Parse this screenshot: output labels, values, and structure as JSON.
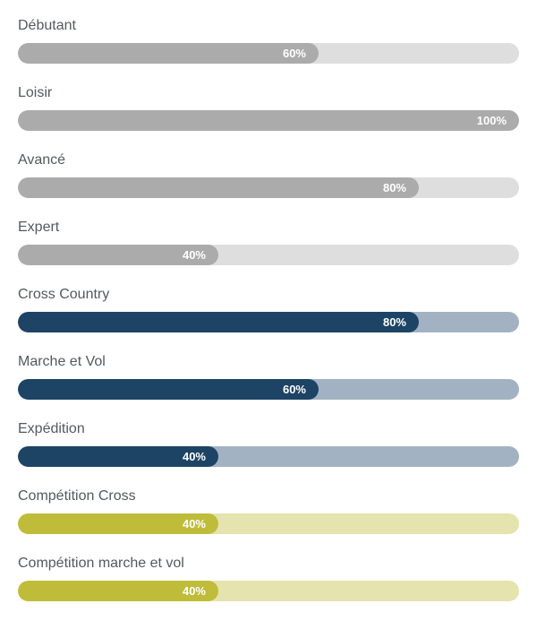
{
  "colors": {
    "gray": {
      "fill": "#ababab",
      "track": "#dedede"
    },
    "blue": {
      "fill": "#1d4465",
      "track": "#a2b2c3"
    },
    "olive": {
      "fill": "#bfbc3a",
      "track": "#e5e3ae"
    }
  },
  "bars": [
    {
      "label": "Débutant",
      "value": 60,
      "value_label": "60%",
      "theme": "gray"
    },
    {
      "label": "Loisir",
      "value": 100,
      "value_label": "100%",
      "theme": "gray"
    },
    {
      "label": "Avancé",
      "value": 80,
      "value_label": "80%",
      "theme": "gray"
    },
    {
      "label": "Expert",
      "value": 40,
      "value_label": "40%",
      "theme": "gray"
    },
    {
      "label": "Cross Country",
      "value": 80,
      "value_label": "80%",
      "theme": "blue"
    },
    {
      "label": "Marche et Vol",
      "value": 60,
      "value_label": "60%",
      "theme": "blue"
    },
    {
      "label": "Expédition",
      "value": 40,
      "value_label": "40%",
      "theme": "blue"
    },
    {
      "label": "Compétition Cross",
      "value": 40,
      "value_label": "40%",
      "theme": "olive"
    },
    {
      "label": "Compétition marche et vol",
      "value": 40,
      "value_label": "40%",
      "theme": "olive"
    }
  ],
  "chart_data": {
    "type": "bar",
    "orientation": "horizontal",
    "categories": [
      "Débutant",
      "Loisir",
      "Avancé",
      "Expert",
      "Cross Country",
      "Marche et Vol",
      "Expédition",
      "Compétition Cross",
      "Compétition marche et vol"
    ],
    "values": [
      60,
      100,
      80,
      40,
      80,
      60,
      40,
      40,
      40
    ],
    "value_labels": [
      "60%",
      "100%",
      "80%",
      "40%",
      "80%",
      "60%",
      "40%",
      "40%",
      "40%"
    ],
    "series_groups": [
      "gray",
      "gray",
      "gray",
      "gray",
      "blue",
      "blue",
      "blue",
      "olive",
      "olive"
    ],
    "title": "",
    "xlabel": "",
    "ylabel": "",
    "xlim": [
      0,
      100
    ],
    "grid": false,
    "legend": false
  }
}
